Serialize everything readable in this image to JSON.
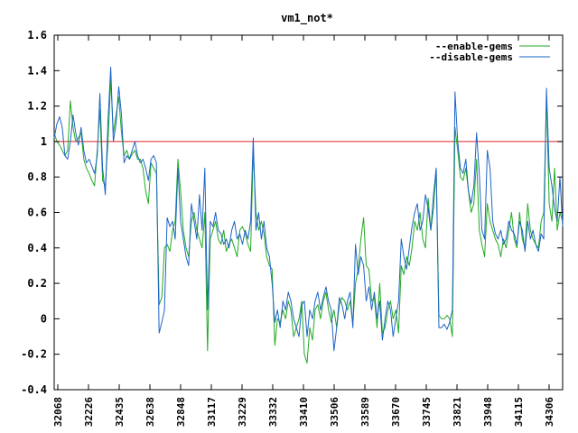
{
  "chart_data": {
    "type": "line",
    "title": "vm1_not*",
    "xlabel": "",
    "ylabel": "",
    "ylim": [
      -0.4,
      1.6
    ],
    "y_ticks": [
      "1.6",
      "1.4",
      "1.2",
      "1",
      "0.8",
      "0.6",
      "0.4",
      "0.2",
      "0",
      "-0.2",
      "-0.4"
    ],
    "y_tick_values": [
      1.6,
      1.4,
      1.2,
      1.0,
      0.8,
      0.6,
      0.4,
      0.2,
      0.0,
      -0.2,
      -0.4
    ],
    "x_tick_labels": [
      "32068",
      "32226",
      "32435",
      "32638",
      "32848",
      "33117",
      "33229",
      "33332",
      "33410",
      "33506",
      "33589",
      "33670",
      "33745",
      "33821",
      "33948",
      "34115",
      "34306"
    ],
    "grid": false,
    "legend_placement": "top-right",
    "reference_line": {
      "y": 1.0,
      "color": "#e02020"
    },
    "series": [
      {
        "name": "--enable-gems",
        "color": "#22aa22",
        "values": [
          1.05,
          1.0,
          0.98,
          0.95,
          0.92,
          0.95,
          1.23,
          1.08,
          1.0,
          1.02,
          1.05,
          0.9,
          0.85,
          0.82,
          0.78,
          0.75,
          0.95,
          1.18,
          0.78,
          0.75,
          1.0,
          1.35,
          1.05,
          1.15,
          1.25,
          1.05,
          0.92,
          0.95,
          0.9,
          0.93,
          0.95,
          0.9,
          0.9,
          0.85,
          0.72,
          0.65,
          0.88,
          0.85,
          0.82,
          0.08,
          0.12,
          0.4,
          0.42,
          0.38,
          0.5,
          0.55,
          0.9,
          0.72,
          0.5,
          0.4,
          0.35,
          0.55,
          0.6,
          0.5,
          0.45,
          0.4,
          0.6,
          -0.18,
          0.45,
          0.5,
          0.55,
          0.45,
          0.42,
          0.5,
          0.38,
          0.42,
          0.45,
          0.4,
          0.35,
          0.5,
          0.52,
          0.48,
          0.42,
          0.38,
          0.95,
          0.6,
          0.5,
          0.55,
          0.48,
          0.35,
          0.3,
          0.28,
          -0.15,
          0.0,
          -0.02,
          0.05,
          0.0,
          0.1,
          0.05,
          -0.1,
          -0.05,
          0.0,
          0.1,
          -0.2,
          -0.25,
          -0.05,
          -0.12,
          0.05,
          0.08,
          0.0,
          0.1,
          0.15,
          0.05,
          -0.02,
          0.05,
          -0.05,
          0.08,
          0.12,
          0.1,
          0.05,
          0.1,
          -0.03,
          0.2,
          0.28,
          0.45,
          0.57,
          0.3,
          0.28,
          0.1,
          0.12,
          -0.05,
          0.2,
          -0.08,
          -0.05,
          0.05,
          0.1,
          0.0,
          0.05,
          -0.08,
          0.3,
          0.25,
          0.35,
          0.3,
          0.4,
          0.55,
          0.5,
          0.6,
          0.45,
          0.4,
          0.68,
          0.5,
          0.62,
          0.85,
          0.02,
          0.0,
          0.0,
          0.02,
          0.0,
          -0.1,
          1.08,
          0.95,
          0.8,
          0.78,
          0.85,
          0.72,
          0.6,
          0.65,
          0.9,
          0.5,
          0.42,
          0.35,
          0.65,
          0.55,
          0.5,
          0.45,
          0.42,
          0.35,
          0.45,
          0.4,
          0.5,
          0.6,
          0.45,
          0.4,
          0.6,
          0.45,
          0.4,
          0.65,
          0.5,
          0.45,
          0.42,
          0.4,
          0.55,
          0.6,
          1.25,
          0.65,
          0.55,
          0.85,
          0.5,
          0.6,
          0.55
        ]
      },
      {
        "name": "--disable-gems",
        "color": "#1e64c8",
        "values": [
          1.02,
          1.1,
          1.14,
          1.08,
          0.92,
          0.9,
          1.0,
          1.15,
          1.05,
          0.98,
          1.08,
          0.95,
          0.88,
          0.9,
          0.86,
          0.82,
          0.92,
          1.27,
          0.85,
          0.7,
          1.12,
          1.42,
          1.0,
          1.1,
          1.31,
          1.15,
          0.88,
          0.92,
          0.9,
          0.95,
          1.0,
          0.92,
          0.88,
          0.9,
          0.85,
          0.78,
          0.9,
          0.92,
          0.88,
          -0.08,
          -0.02,
          0.05,
          0.57,
          0.52,
          0.55,
          0.45,
          0.85,
          0.55,
          0.45,
          0.35,
          0.3,
          0.65,
          0.55,
          0.45,
          0.7,
          0.5,
          0.85,
          0.05,
          0.55,
          0.52,
          0.6,
          0.5,
          0.48,
          0.42,
          0.45,
          0.4,
          0.5,
          0.55,
          0.45,
          0.48,
          0.42,
          0.5,
          0.45,
          0.55,
          1.02,
          0.5,
          0.6,
          0.45,
          0.55,
          0.4,
          0.35,
          0.2,
          -0.02,
          0.05,
          -0.05,
          0.1,
          0.05,
          0.15,
          0.1,
          0.0,
          -0.05,
          -0.1,
          0.08,
          0.1,
          -0.1,
          0.05,
          0.0,
          0.1,
          0.15,
          0.05,
          0.12,
          0.18,
          0.1,
          0.05,
          -0.18,
          -0.05,
          0.12,
          0.08,
          0.0,
          0.1,
          0.15,
          -0.05,
          0.42,
          0.25,
          0.35,
          0.3,
          0.1,
          0.18,
          0.05,
          0.15,
          0.0,
          0.1,
          -0.12,
          0.0,
          0.1,
          0.05,
          -0.1,
          0.0,
          0.1,
          0.45,
          0.35,
          0.28,
          0.4,
          0.52,
          0.6,
          0.65,
          0.5,
          0.55,
          0.7,
          0.62,
          0.5,
          0.7,
          0.85,
          -0.05,
          -0.05,
          -0.03,
          -0.06,
          -0.02,
          0.05,
          1.28,
          1.0,
          0.85,
          0.82,
          0.9,
          0.72,
          0.65,
          0.75,
          1.05,
          0.82,
          0.5,
          0.45,
          0.95,
          0.85,
          0.55,
          0.48,
          0.45,
          0.5,
          0.42,
          0.45,
          0.55,
          0.5,
          0.48,
          0.42,
          0.55,
          0.5,
          0.38,
          0.55,
          0.45,
          0.5,
          0.42,
          0.38,
          0.48,
          0.45,
          1.3,
          0.85,
          0.75,
          0.62,
          0.55,
          0.8,
          0.52
        ]
      }
    ]
  }
}
